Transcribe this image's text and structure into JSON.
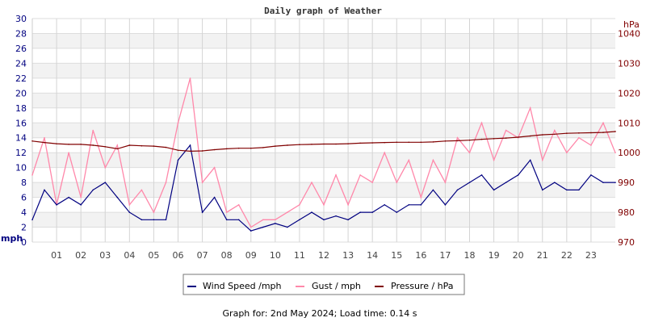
{
  "chart_data": {
    "type": "line",
    "title": "Daily graph of Weather",
    "left_axis": {
      "label": "mph",
      "ylim": [
        0,
        30
      ],
      "ticks": [
        0,
        2,
        4,
        6,
        8,
        10,
        12,
        14,
        16,
        18,
        20,
        22,
        24,
        26,
        28,
        30
      ],
      "color": "#000080"
    },
    "right_axis": {
      "label": "hPa",
      "ylim": [
        970,
        1045
      ],
      "ticks": [
        970,
        980,
        990,
        1000,
        1010,
        1020,
        1030,
        1040
      ],
      "color": "#800000"
    },
    "x_axis": {
      "range": [
        0,
        24
      ],
      "ticks": [
        "01",
        "02",
        "03",
        "04",
        "05",
        "06",
        "07",
        "08",
        "09",
        "10",
        "11",
        "12",
        "13",
        "14",
        "15",
        "16",
        "17",
        "18",
        "19",
        "20",
        "21",
        "22",
        "23"
      ]
    },
    "grid": true,
    "legend_position": "bottom",
    "x": [
      0,
      0.5,
      1,
      1.5,
      2,
      2.5,
      3,
      3.5,
      4,
      4.5,
      5,
      5.5,
      6,
      6.5,
      7,
      7.5,
      8,
      8.5,
      9,
      9.5,
      10,
      10.5,
      11,
      11.5,
      12,
      12.5,
      13,
      13.5,
      14,
      14.5,
      15,
      15.5,
      16,
      16.5,
      17,
      17.5,
      18,
      18.5,
      19,
      19.5,
      20,
      20.5,
      21,
      21.5,
      22,
      22.5,
      23,
      23.5,
      24
    ],
    "series": [
      {
        "name": "Wind Speed /mph",
        "axis": "left",
        "color": "#000080",
        "values": [
          3,
          7,
          5,
          6,
          5,
          7,
          8,
          6,
          4,
          3,
          3,
          3,
          11,
          13,
          4,
          6,
          3,
          3,
          1.5,
          2,
          2.5,
          2,
          3,
          4,
          3,
          3.5,
          3,
          4,
          4,
          5,
          4,
          5,
          5,
          7,
          5,
          7,
          8,
          9,
          7,
          8,
          9,
          11,
          7,
          8,
          7,
          7,
          9,
          8,
          8
        ]
      },
      {
        "name": "Gust / mph",
        "axis": "left",
        "color": "#ff88aa",
        "values": [
          9,
          14,
          5,
          12,
          6,
          15,
          10,
          13,
          5,
          7,
          4,
          8,
          16,
          22,
          8,
          10,
          4,
          5,
          2,
          3,
          3,
          4,
          5,
          8,
          5,
          9,
          5,
          9,
          8,
          12,
          8,
          11,
          6,
          11,
          8,
          14,
          12,
          16,
          11,
          15,
          14,
          18,
          11,
          15,
          12,
          14,
          13,
          16,
          12
        ]
      },
      {
        "name": "Pressure / hPa",
        "axis": "right",
        "color": "#800000",
        "values": [
          1003.9,
          1003.4,
          1003,
          1002.8,
          1002.8,
          1002.5,
          1002,
          1001.3,
          1002.5,
          1002.3,
          1002.2,
          1001.8,
          1000.8,
          1000.5,
          1000.6,
          1001,
          1001.3,
          1001.5,
          1001.5,
          1001.7,
          1002.2,
          1002.5,
          1002.7,
          1002.8,
          1002.9,
          1002.9,
          1003,
          1003.2,
          1003.3,
          1003.4,
          1003.5,
          1003.5,
          1003.5,
          1003.6,
          1003.9,
          1004,
          1004.2,
          1004.5,
          1004.7,
          1004.9,
          1005.2,
          1005.6,
          1006,
          1006.2,
          1006.5,
          1006.6,
          1006.7,
          1006.8,
          1007.1
        ]
      }
    ]
  },
  "footer": "Graph for: 2nd May 2024; Load time: 0.14 s"
}
